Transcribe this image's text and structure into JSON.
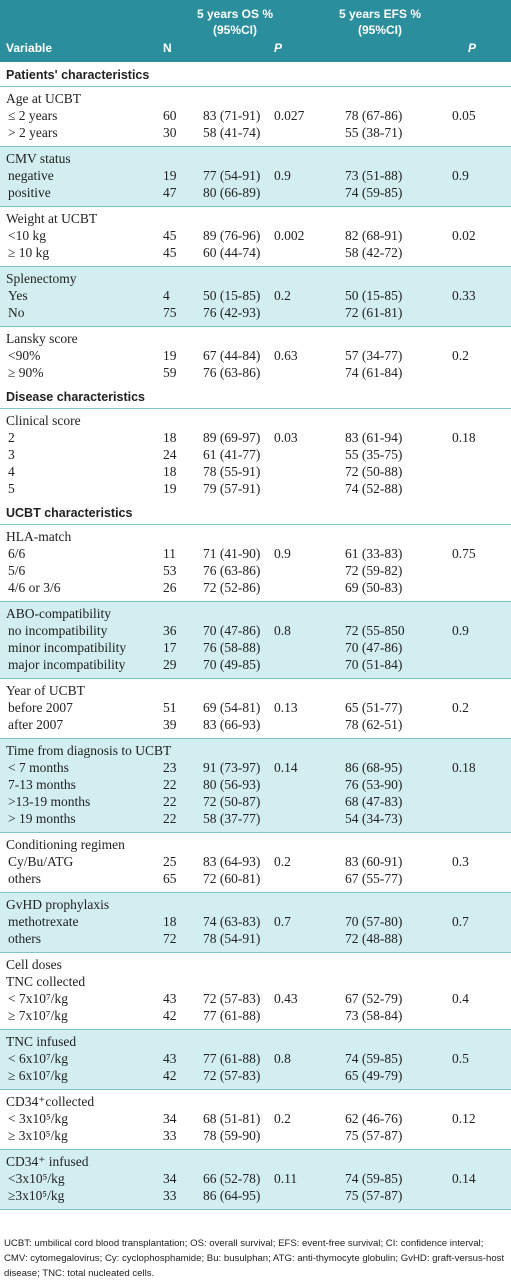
{
  "header": {
    "variable": "Variable",
    "n": "N",
    "os": [
      "5 years OS  %",
      "(95%CI)"
    ],
    "os_p": "P",
    "efs": [
      "5 years EFS  %",
      "(95%CI)"
    ],
    "efs_p": "P"
  },
  "sections": [
    {
      "title": "Patients' characteristics",
      "groups": [
        {
          "title": "Age at UCBT",
          "shaded": false,
          "p_os": 0.027,
          "p_efs": 0.05,
          "rows": [
            {
              "label": "≤ 2 years",
              "n": 60,
              "os": "83 (71-91)",
              "efs": "78 (67-86)"
            },
            {
              "label": "> 2 years",
              "n": 30,
              "os": "58 (41-74)",
              "efs": "55 (38-71)"
            }
          ]
        },
        {
          "title": "CMV status",
          "shaded": true,
          "p_os": 0.9,
          "p_efs": 0.9,
          "rows": [
            {
              "label": "negative",
              "n": 19,
              "os": "77 (54-91)",
              "efs": "73 (51-88)"
            },
            {
              "label": "positive",
              "n": 47,
              "os": "80 (66-89)",
              "efs": "74 (59-85)"
            }
          ]
        },
        {
          "title": "Weight at UCBT",
          "shaded": false,
          "p_os": 0.002,
          "p_efs": 0.02,
          "rows": [
            {
              "label": "<10 kg",
              "n": 45,
              "os": "89 (76-96)",
              "efs": "82 (68-91)"
            },
            {
              "label": "≥ 10 kg",
              "n": 45,
              "os": "60 (44-74)",
              "efs": "58 (42-72)"
            }
          ]
        },
        {
          "title": "Splenectomy",
          "shaded": true,
          "p_os": 0.2,
          "p_efs": 0.33,
          "rows": [
            {
              "label": "Yes",
              "n": 4,
              "os": "50 (15-85)",
              "efs": "50 (15-85)"
            },
            {
              "label": "No",
              "n": 75,
              "os": "76 (42-93)",
              "efs": "72 (61-81)"
            }
          ]
        },
        {
          "title": "Lansky score",
          "shaded": false,
          "p_os": 0.63,
          "p_efs": 0.2,
          "rows": [
            {
              "label": "<90%",
              "n": 19,
              "os": "67 (44-84)",
              "efs": "57 (34-77)"
            },
            {
              "label": "≥ 90%",
              "n": 59,
              "os": "76 (63-86)",
              "efs": "74 (61-84)"
            }
          ]
        }
      ]
    },
    {
      "title": "Disease characteristics",
      "groups": [
        {
          "title": "Clinical score",
          "shaded": false,
          "p_os": 0.03,
          "p_efs": 0.18,
          "rows": [
            {
              "label": "2",
              "n": 18,
              "os": "89 (69-97)",
              "efs": "83 (61-94)"
            },
            {
              "label": "3",
              "n": 24,
              "os": "61 (41-77)",
              "efs": "55 (35-75)"
            },
            {
              "label": "4",
              "n": 18,
              "os": "78 (55-91)",
              "efs": "72 (50-88)"
            },
            {
              "label": "5",
              "n": 19,
              "os": "79 (57-91)",
              "efs": "74 (52-88)"
            }
          ]
        }
      ]
    },
    {
      "title": "UCBT characteristics",
      "groups": [
        {
          "title": "HLA-match",
          "shaded": false,
          "p_os": 0.9,
          "p_efs": 0.75,
          "rows": [
            {
              "label": "6/6",
              "n": 11,
              "os": "71 (41-90)",
              "efs": "61 (33-83)"
            },
            {
              "label": "5/6",
              "n": 53,
              "os": "76 (63-86)",
              "efs": "72 (59-82)"
            },
            {
              "label": "4/6 or 3/6",
              "n": 26,
              "os": "72 (52-86)",
              "efs": "69 (50-83)"
            }
          ]
        },
        {
          "title": "ABO-compatibility",
          "shaded": true,
          "p_os": 0.8,
          "p_efs": 0.9,
          "rows": [
            {
              "label": "no incompatibility",
              "n": 36,
              "os": "70 (47-86)",
              "efs": "72 (55-850"
            },
            {
              "label": "minor  incompatibility",
              "n": 17,
              "os": "76 (58-88)",
              "efs": "70 (47-86)"
            },
            {
              "label": "major  incompatibility",
              "n": 29,
              "os": "70 (49-85)",
              "efs": "70 (51-84)"
            }
          ]
        },
        {
          "title": "Year of UCBT",
          "shaded": false,
          "p_os": 0.13,
          "p_efs": 0.2,
          "rows": [
            {
              "label": "before 2007",
              "n": 51,
              "os": "69 (54-81)",
              "efs": "65 (51-77)"
            },
            {
              "label": "after 2007",
              "n": 39,
              "os": "83 (66-93)",
              "efs": "78 (62-51)"
            }
          ]
        },
        {
          "title": "Time from diagnosis to UCBT",
          "shaded": true,
          "p_os": 0.14,
          "p_efs": 0.18,
          "rows": [
            {
              "label": "< 7 months",
              "n": 23,
              "os": "91 (73-97)",
              "efs": "86 (68-95)"
            },
            {
              "label": "7-13 months",
              "n": 22,
              "os": "80 (56-93)",
              "efs": "76 (53-90)"
            },
            {
              "label": ">13-19 months",
              "n": 22,
              "os": "72 (50-87)",
              "efs": "68 (47-83)"
            },
            {
              "label": "> 19 months",
              "n": 22,
              "os": "58 (37-77)",
              "efs": "54 (34-73)"
            }
          ]
        },
        {
          "title": "Conditioning regimen",
          "shaded": false,
          "p_os": 0.2,
          "p_efs": 0.3,
          "rows": [
            {
              "label": "Cy/Bu/ATG",
              "n": 25,
              "os": "83 (64-93)",
              "efs": "83 (60-91)"
            },
            {
              "label": "others",
              "n": 65,
              "os": "72 (60-81)",
              "efs": "67 (55-77)"
            }
          ]
        },
        {
          "title": "GvHD prophylaxis",
          "shaded": true,
          "p_os": 0.7,
          "p_efs": 0.7,
          "rows": [
            {
              "label": "methotrexate",
              "n": 18,
              "os": "74 (63-83)",
              "efs": "70 (57-80)"
            },
            {
              "label": "others",
              "n": 72,
              "os": "78 (54-91)",
              "efs": "72 (48-88)"
            }
          ]
        },
        {
          "title": "Cell doses",
          "subtitle": "TNC collected",
          "shaded": false,
          "p_os": 0.43,
          "p_efs": 0.4,
          "rows": [
            {
              "label": "< 7x10⁷/kg",
              "n": 43,
              "os": "72 (57-83)",
              "efs": "67 (52-79)"
            },
            {
              "label": "≥ 7x10⁷/kg",
              "n": 42,
              "os": "77 (61-88)",
              "efs": "73 (58-84)"
            }
          ]
        },
        {
          "title": "TNC infused",
          "shaded": true,
          "p_os": 0.8,
          "p_efs": 0.5,
          "rows": [
            {
              "label": "< 6x10⁷/kg",
              "n": 43,
              "os": "77 (61-88)",
              "efs": "74 (59-85)"
            },
            {
              "label": "≥ 6x10⁷/kg",
              "n": 42,
              "os": "72 (57-83)",
              "efs": "65 (49-79)"
            }
          ]
        },
        {
          "title": "CD34⁺collected",
          "shaded": false,
          "p_os": 0.2,
          "p_efs": 0.12,
          "rows": [
            {
              "label": "< 3x10⁵/kg",
              "n": 34,
              "os": "68 (51-81)",
              "efs": "62 (46-76)"
            },
            {
              "label": "≥ 3x10⁵/kg",
              "n": 33,
              "os": "78 (59-90)",
              "efs": "75 (57-87)"
            }
          ]
        },
        {
          "title": "CD34⁺ infused",
          "shaded": true,
          "p_os": 0.11,
          "p_efs": 0.14,
          "rows": [
            {
              "label": "<3x10⁵/kg",
              "n": 34,
              "os": "66 (52-78)",
              "efs": "74 (59-85)"
            },
            {
              "label": "≥3x10⁵/kg",
              "n": 33,
              "os": "86 (64-95)",
              "efs": "75 (57-87)"
            }
          ]
        }
      ]
    }
  ],
  "footnote": "UCBT: umbilical cord blood transplantation; OS: overall survival; EFS: event-free survival; CI: confidence interval; CMV: cytomegalovirus; Cy: cyclophosphamide; Bu: busulphan; ATG: anti-thymocyte globulin; GvHD: graft-versus-host disease; TNC: total nucleated cells."
}
